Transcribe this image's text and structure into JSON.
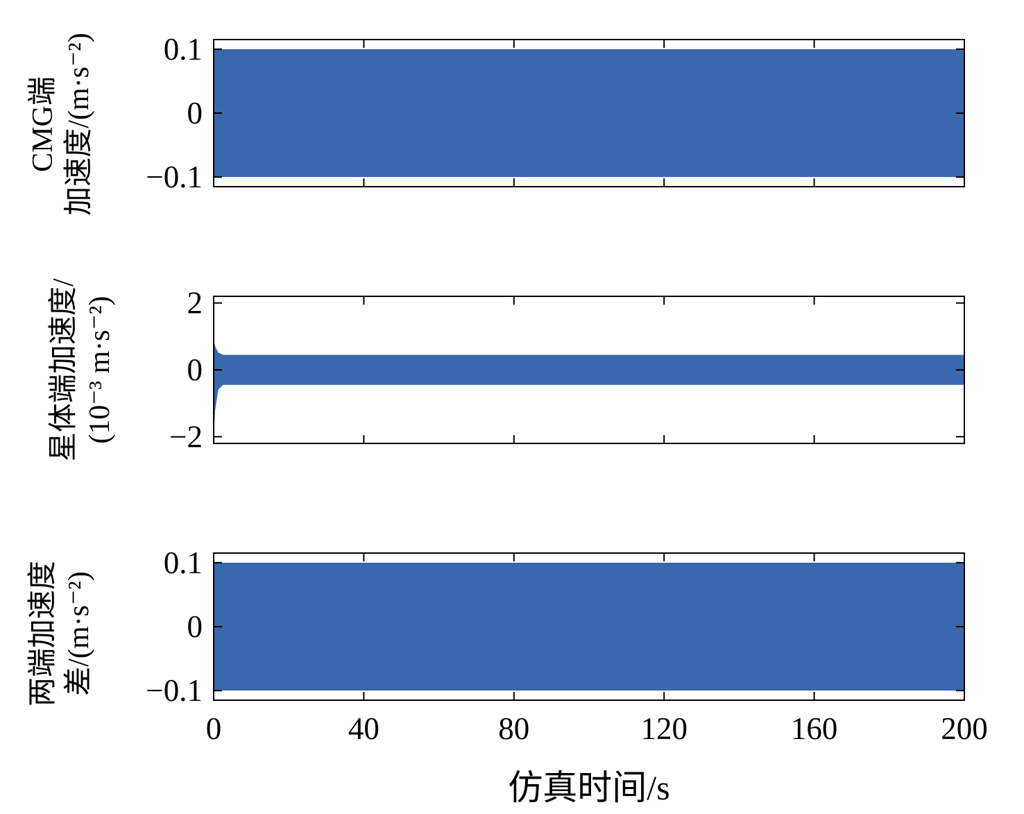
{
  "figure": {
    "xlabel": "仿真时间/s",
    "background": "#ffffff",
    "axis_color": "#000000",
    "accent_color": "#3a68ae"
  },
  "chart_data": [
    {
      "type": "area",
      "title": "",
      "ylabel_lines": [
        "CMG端",
        "加速度/(m·s⁻²)"
      ],
      "ylabel_text": "CMG端加速度/(m·s⁻²)",
      "xlim": [
        0,
        200
      ],
      "ylim": [
        -0.115,
        0.115
      ],
      "yticks": [
        0.1,
        0,
        -0.1
      ],
      "yticklabels": [
        "0.1",
        "0",
        "−0.1"
      ],
      "xticks": [
        0,
        40,
        80,
        120,
        160,
        200
      ],
      "xticklabels": [
        "0",
        "40",
        "80",
        "120",
        "160",
        "200"
      ],
      "show_xticklabels": false,
      "grid": false,
      "legend": null,
      "color": "#3a68ae",
      "series": [
        {
          "name": "CMG端加速度振荡包络",
          "description": "高频振荡，幅值恒定±0.1，从0到200 s铺满",
          "x": [
            0,
            200
          ],
          "upper": [
            0.1,
            0.1
          ],
          "lower": [
            -0.1,
            -0.1
          ]
        }
      ]
    },
    {
      "type": "area",
      "title": "",
      "ylabel_lines": [
        "星体端加速度/",
        "(10⁻³ m·s⁻²)"
      ],
      "ylabel_text": "星体端加速度/(10⁻³ m·s⁻²)",
      "xlim": [
        0,
        200
      ],
      "ylim": [
        -2.2,
        2.2
      ],
      "yticks": [
        2,
        0,
        -2
      ],
      "yticklabels": [
        "2",
        "0",
        "−2"
      ],
      "xticks": [
        0,
        40,
        80,
        120,
        160,
        200
      ],
      "xticklabels": [
        "0",
        "40",
        "80",
        "120",
        "160",
        "200"
      ],
      "show_xticklabels": false,
      "grid": false,
      "legend": null,
      "color": "#3a68ae",
      "series": [
        {
          "name": "星体端加速度振荡包络",
          "description": "初始瞬态尖峰约+0.9/−2.0×10⁻³，随后稳定高频振荡约±0.45×10⁻³",
          "x": [
            0,
            0.4,
            1.2,
            2.5,
            200
          ],
          "upper": [
            0.9,
            0.7,
            0.52,
            0.45,
            0.45
          ],
          "lower": [
            -2.0,
            -1.2,
            -0.6,
            -0.45,
            -0.45
          ]
        }
      ]
    },
    {
      "type": "area",
      "title": "",
      "ylabel_lines": [
        "两端加速度",
        "差/(m·s⁻²)"
      ],
      "ylabel_text": "两端加速度差/(m·s⁻²)",
      "xlim": [
        0,
        200
      ],
      "ylim": [
        -0.115,
        0.115
      ],
      "yticks": [
        0.1,
        0,
        -0.1
      ],
      "yticklabels": [
        "0.1",
        "0",
        "−0.1"
      ],
      "xticks": [
        0,
        40,
        80,
        120,
        160,
        200
      ],
      "xticklabels": [
        "0",
        "40",
        "80",
        "120",
        "160",
        "200"
      ],
      "show_xticklabels": true,
      "grid": false,
      "legend": null,
      "color": "#3a68ae",
      "series": [
        {
          "name": "两端加速度差振荡包络",
          "description": "高频振荡，幅值恒定±0.1，从0到200 s铺满",
          "x": [
            0,
            200
          ],
          "upper": [
            0.1,
            0.1
          ],
          "lower": [
            -0.1,
            -0.1
          ]
        }
      ]
    }
  ]
}
